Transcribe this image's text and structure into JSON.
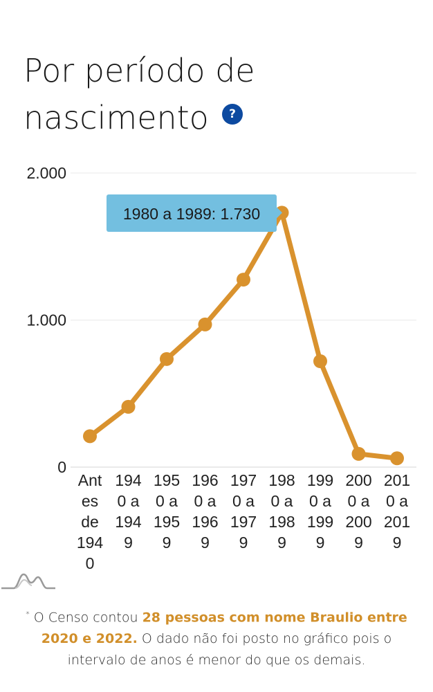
{
  "title": "Por período de nascimento",
  "help": {
    "icon": "question-icon",
    "glyph": "?"
  },
  "chart_data": {
    "type": "line",
    "categories": [
      "Antes de 1940",
      "1940 a 1949",
      "1950 a 1959",
      "1960 a 1969",
      "1970 a 1979",
      "1980 a 1989",
      "1990 a 1999",
      "2000 a 2009",
      "2010 a 2019"
    ],
    "category_display": [
      [
        "Ant",
        "es",
        "de",
        "194",
        "0"
      ],
      [
        "194",
        "0 a",
        "194",
        "9"
      ],
      [
        "195",
        "0 a",
        "195",
        "9"
      ],
      [
        "196",
        "0 a",
        "196",
        "9"
      ],
      [
        "197",
        "0 a",
        "197",
        "9"
      ],
      [
        "198",
        "0 a",
        "198",
        "9"
      ],
      [
        "199",
        "0 a",
        "199",
        "9"
      ],
      [
        "200",
        "0 a",
        "200",
        "9"
      ],
      [
        "201",
        "0 a",
        "201",
        "9"
      ]
    ],
    "values": [
      210,
      410,
      735,
      970,
      1275,
      1730,
      720,
      90,
      60
    ],
    "ylim": [
      0,
      2000
    ],
    "yticks": [
      0,
      1000,
      2000
    ],
    "ytick_labels": [
      "0",
      "1.000",
      "2.000"
    ],
    "grid": true,
    "line_color": "#d9922e",
    "tooltip": {
      "text": "1980 a 1989: 1.730",
      "index": 5
    }
  },
  "colors": {
    "accent": "#d9922e",
    "tooltip_bg": "#73bfe0",
    "help_bg": "#0d4aa0"
  },
  "footnote": {
    "mark": "*",
    "prefix": " O Censo contou ",
    "highlight": "28 pessoas com nome Braulio entre 2020 e 2022.",
    "suffix": " O dado não foi posto no gráfico pois o intervalo de anos é menor do que os demais."
  }
}
